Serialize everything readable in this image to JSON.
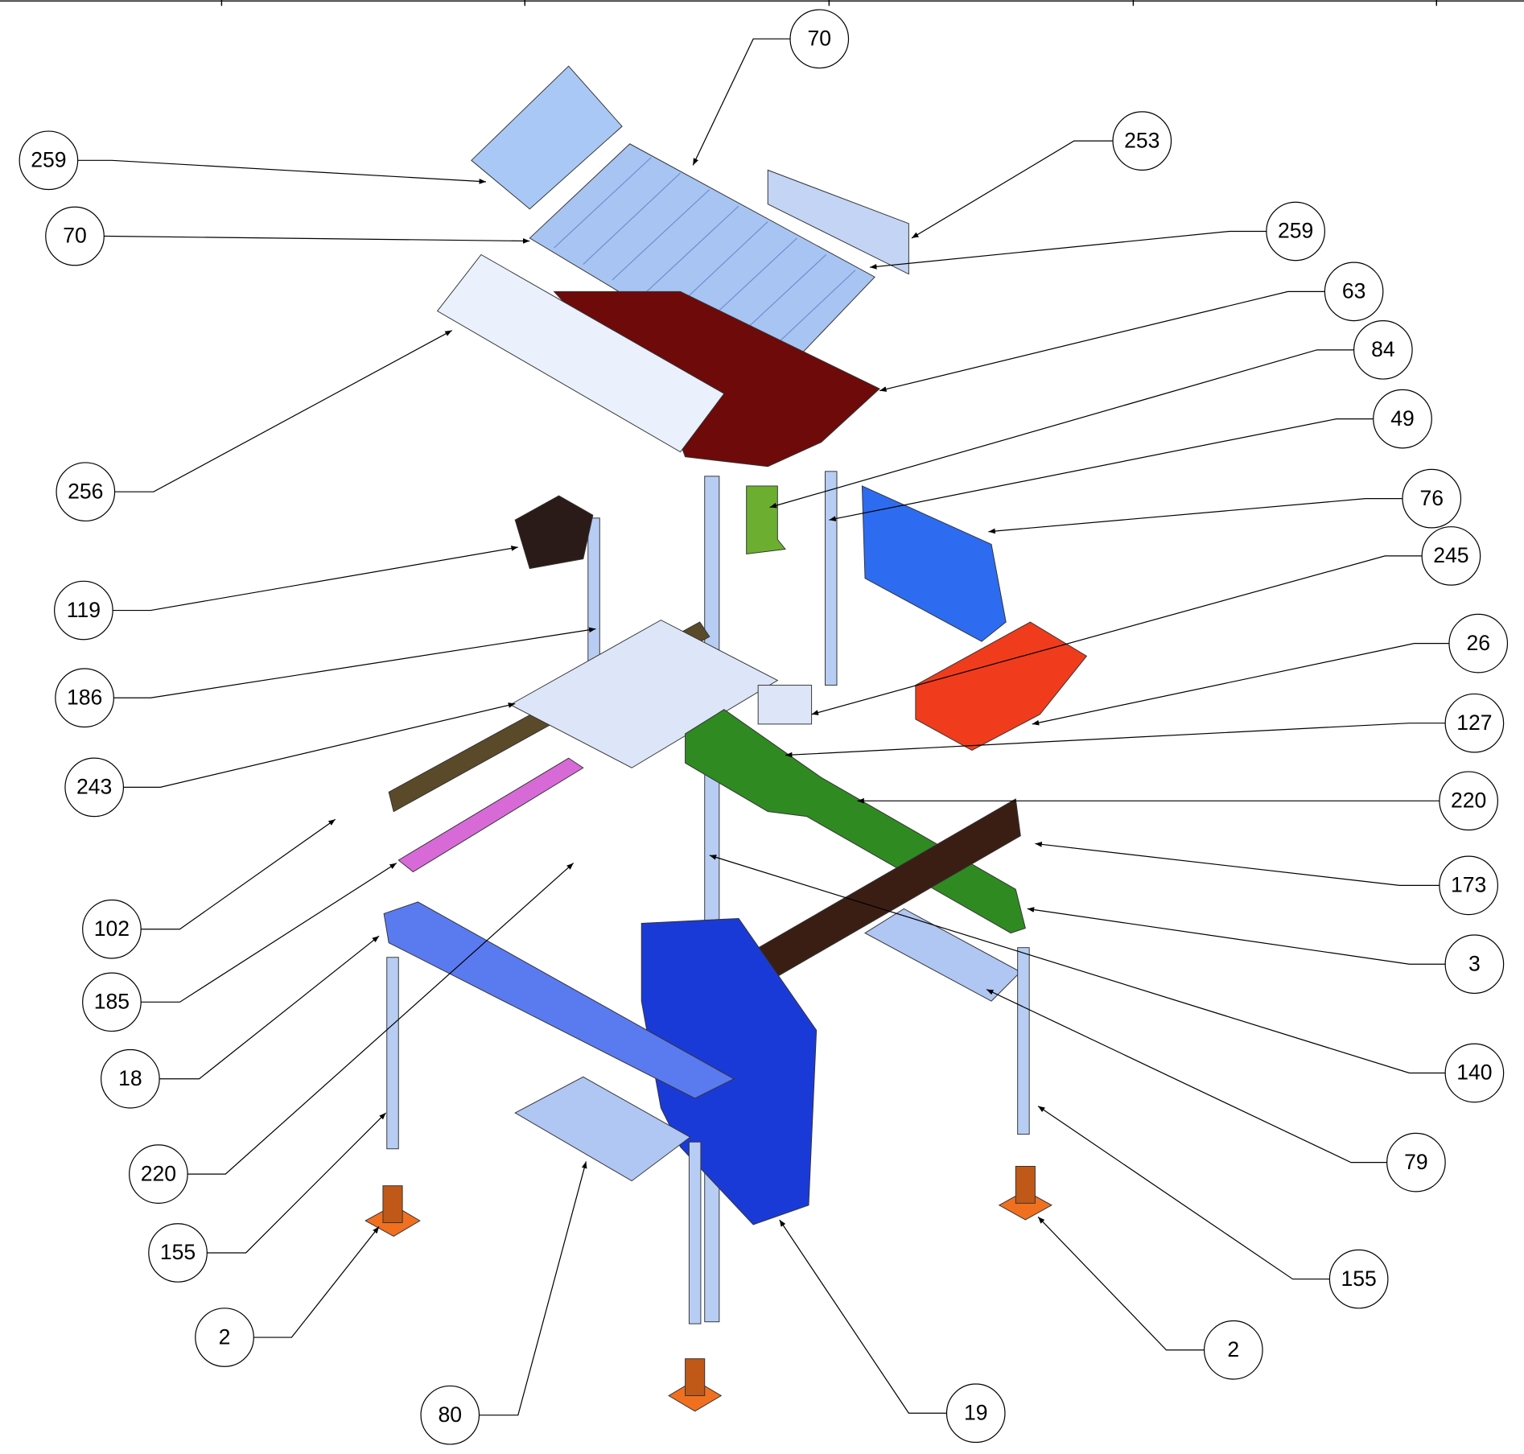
{
  "callouts": [
    {
      "label": "70"
    },
    {
      "label": "253"
    },
    {
      "label": "259"
    },
    {
      "label": "70"
    },
    {
      "label": "259"
    },
    {
      "label": "63"
    },
    {
      "label": "84"
    },
    {
      "label": "49"
    },
    {
      "label": "256"
    },
    {
      "label": "76"
    },
    {
      "label": "245"
    },
    {
      "label": "119"
    },
    {
      "label": "26"
    },
    {
      "label": "186"
    },
    {
      "label": "127"
    },
    {
      "label": "243"
    },
    {
      "label": "220"
    },
    {
      "label": "173"
    },
    {
      "label": "102"
    },
    {
      "label": "3"
    },
    {
      "label": "185"
    },
    {
      "label": "140"
    },
    {
      "label": "18"
    },
    {
      "label": "79"
    },
    {
      "label": "220"
    },
    {
      "label": "155"
    },
    {
      "label": "155"
    },
    {
      "label": "2"
    },
    {
      "label": "2"
    },
    {
      "label": "80"
    },
    {
      "label": "19"
    }
  ]
}
